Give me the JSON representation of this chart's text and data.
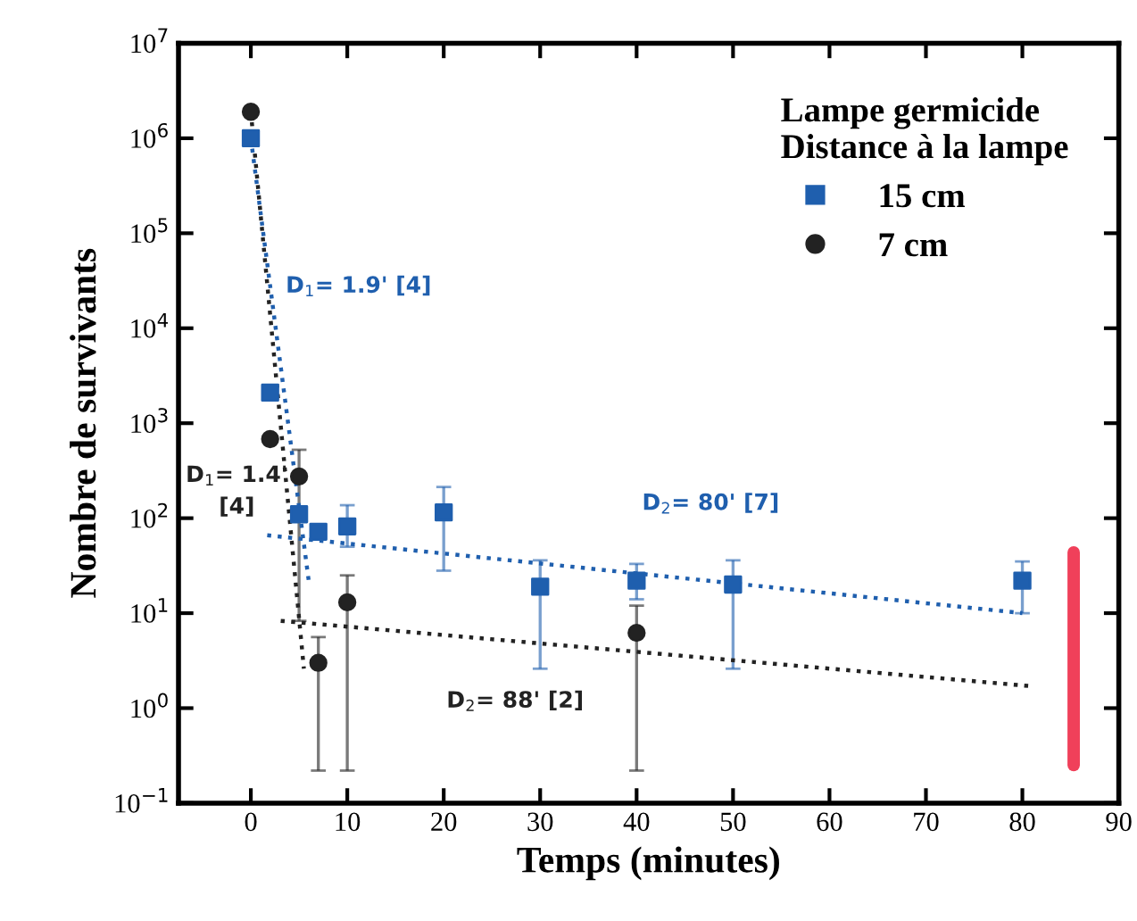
{
  "chart_data": {
    "type": "scatter",
    "xlabel": "Temps (minutes)",
    "ylabel": "Nombre de survivants",
    "legend_title": "Lampe germicide\nDistance à la lampe",
    "legend": "top right",
    "log": "y",
    "xlim": [
      -7.5,
      90
    ],
    "xticks": [
      0,
      10,
      20,
      30,
      40,
      50,
      60,
      70,
      80,
      90
    ],
    "ylim": [
      0.1,
      10000000
    ],
    "yticks": [
      {
        "value": 0.1,
        "label": "10$^{−1}$"
      },
      {
        "value": 1,
        "label": "10$^{0}$"
      },
      {
        "value": 10,
        "label": "10$^{1}$"
      },
      {
        "value": 100,
        "label": "10$^{2}$"
      },
      {
        "value": 1000,
        "label": "10$^{3}$"
      },
      {
        "value": 10000,
        "label": "10$^{4}$"
      },
      {
        "value": 100000,
        "label": "10$^{5}$"
      },
      {
        "value": 1000000,
        "label": "10$^{6}$"
      },
      {
        "value": 10000000,
        "label": "10$^{7}$"
      }
    ],
    "grid": false,
    "series": [
      {
        "name": "15 cm",
        "marker": "square",
        "color": "#1f5fae",
        "x": [
          0,
          2,
          5,
          7,
          10,
          20,
          30,
          40,
          50,
          80
        ],
        "values": [
          1000000,
          2100,
          110,
          72,
          82,
          115,
          19,
          22,
          20,
          22
        ],
        "errors": [
          null,
          null,
          null,
          null,
          [
            50,
            137
          ],
          [
            28,
            213
          ],
          [
            2.6,
            36
          ],
          [
            14,
            33
          ],
          [
            2.6,
            36
          ],
          [
            10,
            35
          ]
        ]
      },
      {
        "name": "7 cm",
        "marker": "circle",
        "color": "#222222",
        "x": [
          0,
          2,
          5,
          7,
          10,
          40
        ],
        "values": [
          1900000,
          680,
          275,
          3,
          13,
          6.2
        ],
        "errors": [
          null,
          null,
          [
            8.3,
            525
          ],
          [
            0.22,
            5.6
          ],
          [
            0.22,
            25
          ],
          [
            0.22,
            12
          ]
        ]
      },
      {
        "type": "line",
        "line_style": "dotted",
        "marker": "none",
        "color": "#1f5fae",
        "x": [
          0,
          6
        ],
        "values": [
          1000000,
          22
        ]
      },
      {
        "type": "line",
        "line_style": "dotted",
        "marker": "none",
        "color": "#222222",
        "x": [
          0,
          5.5
        ],
        "values": [
          1900000,
          2.6
        ]
      },
      {
        "type": "line",
        "line_style": "dotted",
        "marker": "none",
        "color": "#1f5fae",
        "x": [
          1.7,
          80
        ],
        "values": [
          66,
          10
        ]
      },
      {
        "type": "line",
        "line_style": "dotted",
        "marker": "none",
        "color": "#222222",
        "x": [
          3.1,
          81
        ],
        "values": [
          8.3,
          1.7
        ]
      }
    ],
    "annotations": [
      "D$_{1}$= 1.9' [4]",
      "D$_{1}$= 1.4'\n[4]",
      "D$_{2}$= 80' [7]",
      "D$_{2}$= 88' [2]"
    ]
  }
}
